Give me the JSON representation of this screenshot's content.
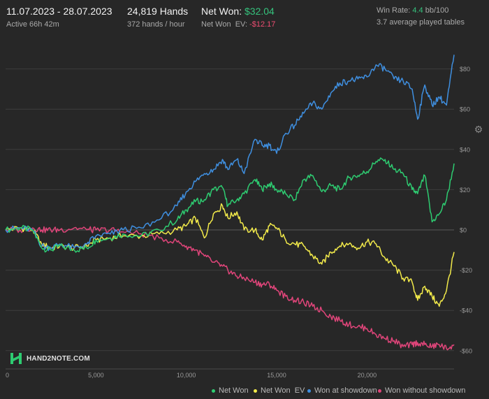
{
  "header": {
    "date_range": "11.07.2023 - 28.07.2023",
    "active": "Active 66h 42m",
    "hands": "24,819 Hands",
    "hands_rate": "372 hands / hour",
    "net_won_label": "Net Won:",
    "net_won_value": "$32.04",
    "net_won_ev_label": "Net Won  EV:",
    "net_won_ev_value": "-$12.17",
    "win_rate_label": "Win Rate:",
    "win_rate_value": "4.4",
    "win_rate_unit": "bb/100",
    "avg_tables": "3.7 average played tables"
  },
  "logo_text": "HAND2NOTE.COM",
  "icons": {
    "settings": "gear-icon",
    "logo": "hand2note-logo-icon"
  },
  "colors": {
    "background": "#272727",
    "grid": "#3e3e3e",
    "net_won": "#2ecc71",
    "net_won_ev": "#f2ea4a",
    "showdown": "#3f8fe0",
    "without_showdown": "#e0457a",
    "accent_positive": "#35c37d",
    "accent_negative": "#ef4d72"
  },
  "chart_data": {
    "type": "line",
    "x_ticks": [
      0,
      5000,
      10000,
      15000,
      20000
    ],
    "x_tick_labels": [
      "0",
      "5,000",
      "10,000",
      "15,000",
      "20,000"
    ],
    "y_ticks": [
      80,
      60,
      40,
      20,
      0,
      -20,
      -40,
      -60
    ],
    "y_tick_labels": [
      "$80",
      "$60",
      "$40",
      "$20",
      "$0",
      "-$20",
      "-$40",
      "-$60"
    ],
    "xlim": [
      0,
      24819
    ],
    "ylim": [
      -65,
      90
    ],
    "grid": true,
    "legend_position": "bottom-right",
    "series": [
      {
        "name": "Net Won",
        "x": [
          0,
          800,
          1500,
          2000,
          2500,
          3000,
          3800,
          4500,
          5000,
          5800,
          6500,
          7500,
          8500,
          9500,
          10000,
          10500,
          11000,
          11500,
          12000,
          12300,
          12800,
          13200,
          13800,
          14200,
          14600,
          15000,
          15500,
          16000,
          16500,
          17000,
          17500,
          18000,
          18500,
          19000,
          19500,
          20000,
          20500,
          21000,
          21500,
          22000,
          22500,
          22800,
          23200,
          23600,
          24000,
          24400,
          24819
        ],
        "y": [
          0,
          1,
          0,
          -9,
          -10,
          -8,
          -10,
          -9,
          -5,
          -4,
          -2,
          -3,
          0,
          5,
          10,
          14,
          15,
          20,
          21,
          12,
          15,
          18,
          25,
          20,
          23,
          20,
          18,
          15,
          25,
          27,
          19,
          22,
          20,
          26,
          27,
          29,
          34,
          35,
          30,
          28,
          20,
          18,
          27,
          4,
          8,
          15,
          33
        ]
      },
      {
        "name": "Net Won  EV",
        "x": [
          0,
          800,
          1500,
          2000,
          2500,
          3000,
          3800,
          4500,
          5000,
          5800,
          6500,
          7500,
          8500,
          9500,
          10000,
          10500,
          11000,
          11500,
          12000,
          12300,
          12800,
          13200,
          13800,
          14200,
          14600,
          15000,
          15500,
          16000,
          16500,
          17000,
          17500,
          18000,
          18500,
          19000,
          19500,
          20000,
          20500,
          21000,
          21500,
          22000,
          22500,
          22800,
          23200,
          23600,
          24000,
          24400,
          24819
        ],
        "y": [
          0,
          1,
          0,
          -7,
          -9,
          -8,
          -9,
          -8,
          -5,
          -4,
          -3,
          -3,
          -2,
          0,
          2,
          6,
          -4,
          8,
          12,
          6,
          9,
          0,
          0,
          -5,
          2,
          1,
          -5,
          -7,
          -8,
          -13,
          -17,
          -11,
          -8,
          -7,
          -9,
          -6,
          -7,
          -14,
          -18,
          -24,
          -26,
          -35,
          -28,
          -33,
          -38,
          -30,
          -11
        ]
      },
      {
        "name": "Won at showdown",
        "x": [
          0,
          800,
          1500,
          2000,
          2500,
          3000,
          3800,
          4500,
          5000,
          5800,
          6500,
          7500,
          8500,
          9500,
          10000,
          10500,
          11000,
          11500,
          12000,
          12300,
          12800,
          13200,
          13800,
          14200,
          14600,
          15000,
          15500,
          16000,
          16500,
          17000,
          17500,
          18000,
          18500,
          19000,
          19500,
          20000,
          20500,
          21000,
          21500,
          22000,
          22500,
          22800,
          23200,
          23600,
          24000,
          24400,
          24819
        ],
        "y": [
          0,
          1,
          0,
          -8,
          -9,
          -7,
          -9,
          -7,
          -3,
          -2,
          0,
          1,
          5,
          12,
          19,
          24,
          28,
          30,
          35,
          30,
          35,
          28,
          45,
          42,
          42,
          38,
          48,
          52,
          58,
          63,
          60,
          68,
          73,
          74,
          75,
          76,
          82,
          80,
          75,
          74,
          70,
          55,
          72,
          62,
          66,
          62,
          87
        ]
      },
      {
        "name": "Won without showdown",
        "x": [
          0,
          800,
          1500,
          2000,
          2500,
          3000,
          3800,
          4500,
          5000,
          5800,
          6500,
          7500,
          8500,
          9500,
          10000,
          10500,
          11000,
          11500,
          12000,
          12300,
          12800,
          13200,
          13800,
          14200,
          14600,
          15000,
          15500,
          16000,
          16500,
          17000,
          17500,
          18000,
          18500,
          19000,
          19500,
          20000,
          20500,
          21000,
          21500,
          22000,
          22500,
          22800,
          23200,
          23600,
          24000,
          24400,
          24819
        ],
        "y": [
          0,
          0,
          1,
          0,
          0,
          0,
          1,
          0,
          0,
          0,
          -1,
          -2,
          -4,
          -6,
          -8,
          -10,
          -13,
          -16,
          -18,
          -20,
          -23,
          -24,
          -26,
          -27,
          -27,
          -30,
          -33,
          -35,
          -36,
          -38,
          -40,
          -43,
          -45,
          -47,
          -48,
          -49,
          -52,
          -54,
          -55,
          -58,
          -57,
          -56,
          -57,
          -58,
          -57,
          -59,
          -57
        ]
      }
    ],
    "legend": [
      "Net Won",
      "Net Won  EV",
      "Won at showdown",
      "Won without showdown"
    ]
  }
}
